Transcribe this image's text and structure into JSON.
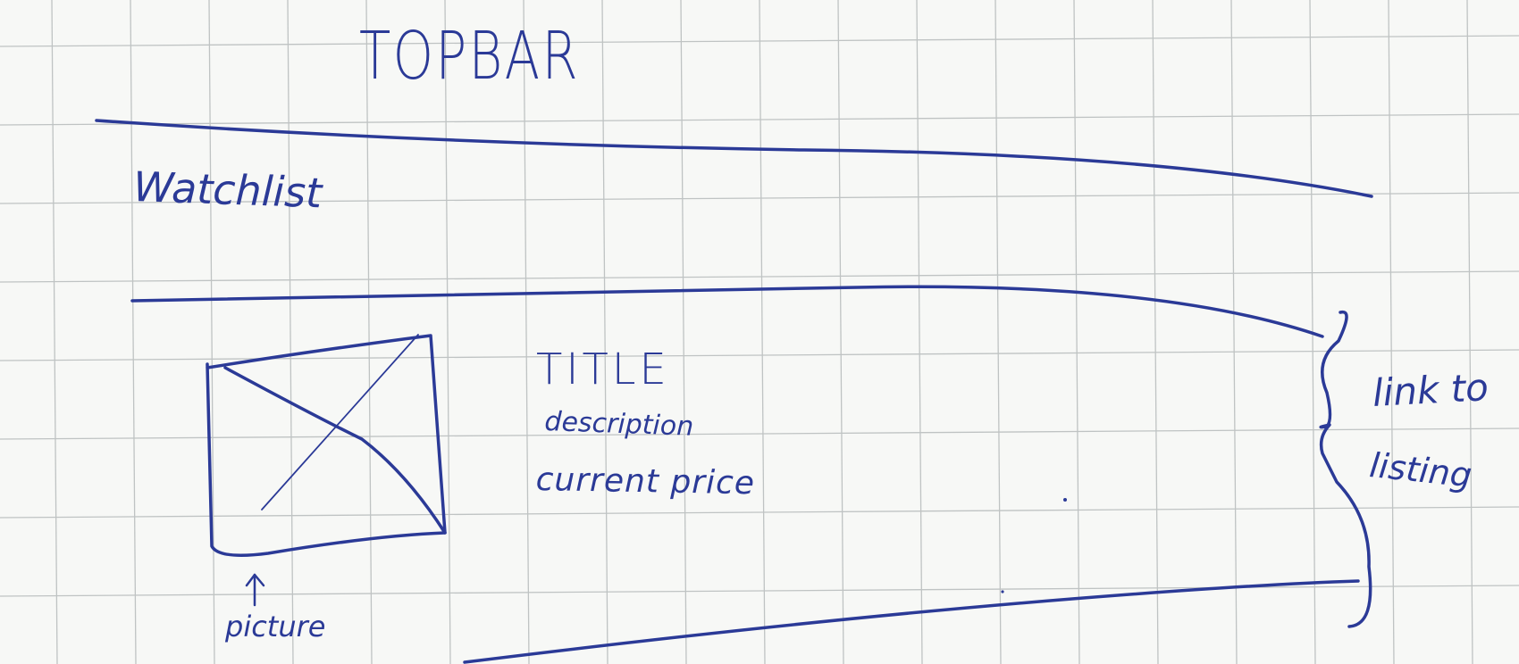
{
  "sketch": {
    "topbar_label": "TOPBAR",
    "watchlist_label": "Watchlist",
    "item": {
      "title": "TITLE",
      "description": "description",
      "price": "current price",
      "picture_label": "picture"
    },
    "annotation": {
      "line1": "link to",
      "line2": "listing"
    }
  },
  "colors": {
    "ink": "#2b3a97",
    "paper": "#f7f8f6",
    "grid": "#bfc3c3"
  }
}
